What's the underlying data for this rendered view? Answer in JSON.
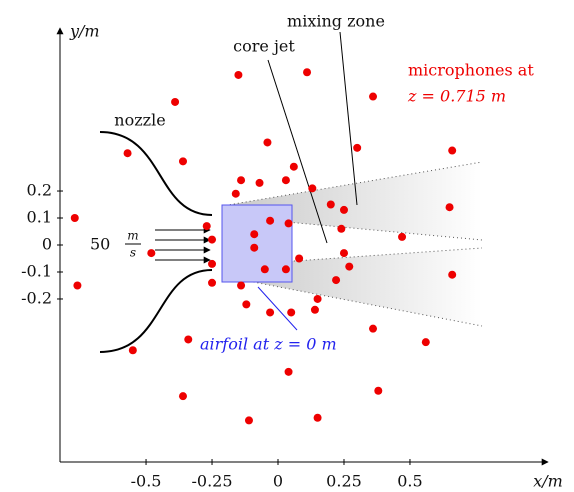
{
  "chart_data": {
    "type": "scatter",
    "x_label": "x/m",
    "y_label": "y/m",
    "annotations": {
      "nozzle": "nozzle",
      "core_jet": "core jet",
      "mixing_zone": "mixing zone",
      "microphones_line1": "microphones at",
      "microphones_line2": "z = 0.715 m",
      "airfoil": "airfoil at z = 0 m",
      "velocity": "50",
      "velocity_unit_num": "m",
      "velocity_unit_den": "s"
    },
    "color": "#ee0000",
    "xlim": [
      -0.826,
      1.023
    ],
    "ylim": [
      -0.804,
      0.804
    ],
    "xticks": [
      -0.5,
      -0.25,
      0,
      0.25,
      0.5
    ],
    "yticks": [
      0.2,
      0.1,
      0,
      -0.1,
      -0.2
    ],
    "x": [
      -0.15,
      0.11,
      -0.39,
      0.36,
      -0.57,
      -0.36,
      -0.04,
      0.3,
      0.66,
      -0.77,
      0.06,
      0.03,
      -0.14,
      -0.07,
      -0.16,
      0.13,
      0.2,
      0.25,
      0.65,
      -0.27,
      -0.03,
      0.04,
      -0.09,
      0.24,
      0.47,
      -0.25,
      -0.48,
      -0.09,
      0.25,
      -0.25,
      -0.05,
      0.03,
      0.08,
      0.27,
      0.22,
      0.66,
      -0.76,
      -0.25,
      -0.14,
      0.15,
      -0.12,
      -0.03,
      0.05,
      0.14,
      0.36,
      -0.55,
      -0.34,
      0.56,
      0.04,
      -0.36,
      0.38,
      -0.11,
      0.15
    ],
    "values": [
      0.63,
      0.64,
      0.53,
      0.55,
      0.34,
      0.31,
      0.38,
      0.36,
      0.35,
      0.1,
      0.29,
      0.24,
      0.24,
      0.23,
      0.19,
      0.21,
      0.15,
      0.13,
      0.14,
      0.07,
      0.09,
      0.08,
      0.04,
      0.06,
      0.03,
      0.02,
      -0.03,
      -0.01,
      -0.03,
      -0.07,
      -0.09,
      -0.09,
      -0.05,
      -0.08,
      -0.13,
      -0.11,
      -0.15,
      -0.14,
      -0.15,
      -0.2,
      -0.22,
      -0.25,
      -0.25,
      -0.24,
      -0.31,
      -0.39,
      -0.35,
      -0.36,
      -0.47,
      -0.56,
      -0.54,
      -0.65,
      -0.64
    ]
  }
}
